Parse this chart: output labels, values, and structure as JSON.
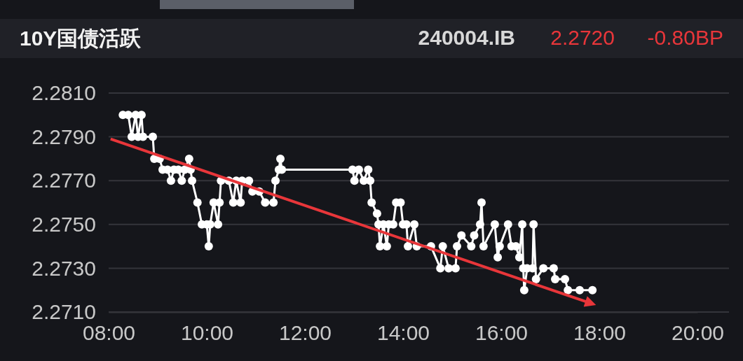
{
  "chart_data": {
    "type": "line",
    "title": "10Y国债活跃",
    "annotations": [
      "240004.IB",
      "2.2720",
      "-0.80BP"
    ],
    "xlim": [
      8,
      20
    ],
    "xticks": [
      {
        "value": 8,
        "label": "08:00"
      },
      {
        "value": 10,
        "label": "10:00"
      },
      {
        "value": 12,
        "label": "12:00"
      },
      {
        "value": 14,
        "label": "14:00"
      },
      {
        "value": 16,
        "label": "16:00"
      },
      {
        "value": 18,
        "label": "18:00"
      },
      {
        "value": 20,
        "label": "20:00"
      }
    ],
    "ylim": [
      2.271,
      2.281
    ],
    "yticks": [
      {
        "value": 2.271,
        "label": "2.2710"
      },
      {
        "value": 2.273,
        "label": "2.2730"
      },
      {
        "value": 2.275,
        "label": "2.2750"
      },
      {
        "value": 2.277,
        "label": "2.2770"
      },
      {
        "value": 2.279,
        "label": "2.2790"
      },
      {
        "value": 2.281,
        "label": "2.2810"
      }
    ],
    "grid": "y",
    "series": [
      {
        "color": "#ffffff",
        "marker": "circle",
        "x": [
          8.29,
          8.4,
          8.47,
          8.55,
          8.6,
          8.67,
          8.7,
          8.9,
          8.93,
          9.04,
          9.1,
          9.2,
          9.27,
          9.33,
          9.42,
          9.49,
          9.55,
          9.64,
          9.67,
          9.7,
          9.81,
          9.9,
          10.0,
          10.04,
          10.07,
          10.14,
          10.23,
          10.26,
          10.29,
          10.45,
          10.54,
          10.6,
          10.69,
          10.72,
          10.86,
          10.93,
          11.07,
          11.19,
          11.36,
          11.4,
          11.47,
          11.5,
          11.53,
          12.97,
          13.01,
          13.1,
          13.2,
          13.29,
          13.33,
          13.36,
          13.47,
          13.5,
          13.53,
          13.6,
          13.67,
          13.71,
          13.8,
          13.86,
          13.95,
          14.0,
          14.07,
          14.1,
          14.23,
          14.28,
          14.57,
          14.76,
          14.81,
          14.93,
          15.07,
          15.1,
          15.19,
          15.39,
          15.45,
          15.57,
          15.6,
          15.64,
          15.87,
          15.93,
          15.97,
          16.14,
          16.21,
          16.3,
          16.37,
          16.43,
          16.45,
          16.47,
          16.53,
          16.64,
          16.66,
          16.71,
          16.86,
          17.07,
          17.1,
          17.3,
          17.36,
          17.6,
          17.86
        ],
        "values": [
          2.28,
          2.28,
          2.279,
          2.28,
          2.279,
          2.28,
          2.279,
          2.279,
          2.278,
          2.278,
          2.2775,
          2.2775,
          2.277,
          2.2775,
          2.2775,
          2.277,
          2.2775,
          2.278,
          2.2775,
          2.277,
          2.276,
          2.275,
          2.275,
          2.274,
          2.275,
          2.276,
          2.275,
          2.276,
          2.277,
          2.277,
          2.276,
          2.277,
          2.276,
          2.277,
          2.277,
          2.2765,
          2.2765,
          2.276,
          2.276,
          2.277,
          2.2775,
          2.278,
          2.2775,
          2.2775,
          2.277,
          2.2775,
          2.277,
          2.2775,
          2.277,
          2.276,
          2.2755,
          2.275,
          2.274,
          2.275,
          2.274,
          2.275,
          2.275,
          2.276,
          2.276,
          2.275,
          2.275,
          2.274,
          2.275,
          2.274,
          2.274,
          2.273,
          2.274,
          2.273,
          2.273,
          2.274,
          2.2745,
          2.274,
          2.2745,
          2.275,
          2.276,
          2.274,
          2.275,
          2.2735,
          2.274,
          2.275,
          2.274,
          2.274,
          2.2735,
          2.275,
          2.273,
          2.272,
          2.273,
          2.273,
          2.275,
          2.2725,
          2.273,
          2.273,
          2.2725,
          2.2725,
          2.272,
          2.272,
          2.272
        ]
      },
      {
        "type": "line",
        "color": "#e8363a",
        "marker": "none",
        "x": [
          8.04,
          17.76
        ],
        "values": [
          2.2789,
          2.27145
        ]
      }
    ]
  }
}
